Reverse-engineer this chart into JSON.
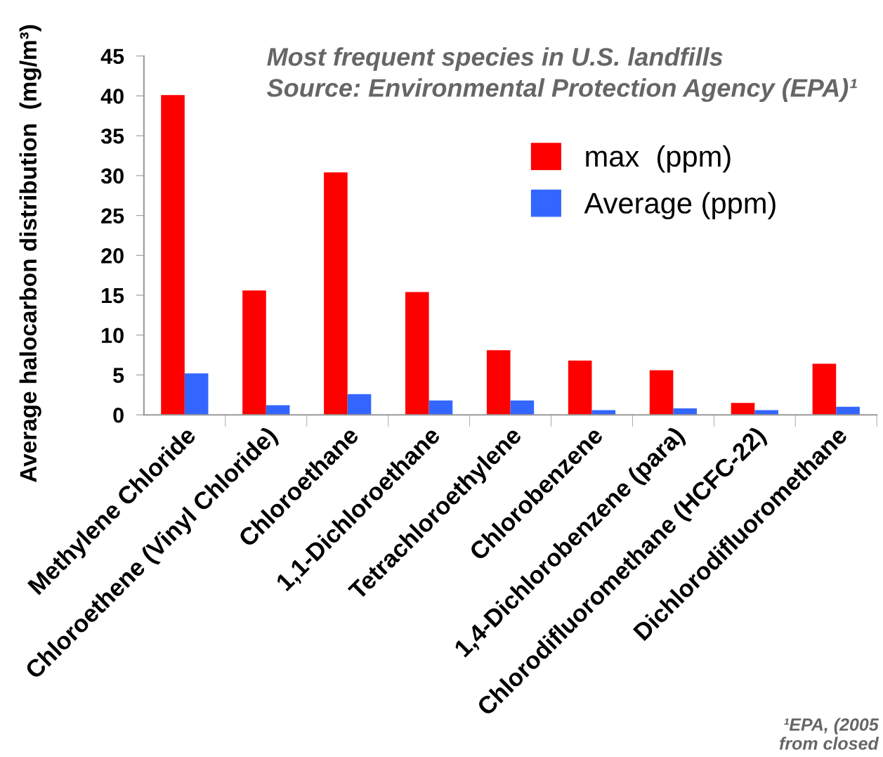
{
  "chart_data": {
    "type": "bar",
    "title": "Most frequent species in U.S. landfills",
    "subtitle": "Source: Environmental Protection Agency (EPA)¹",
    "ylabel": "Average halocarbon distribution  (mg/m³)",
    "categories": [
      "Methylene Chloride",
      "Chloroethene (Vinyl Chloride)",
      "Chloroethane",
      "1,1-Dichloroethane",
      "Tetrachloroethylene",
      "Chlorobenzene",
      "1,4-Dichlorobenzene (para)",
      "Chlorodifluoromethane (HCFC-22)",
      "Dichlorodifluoromethane"
    ],
    "series": [
      {
        "name": "max  (ppm)",
        "color": "#ff0000",
        "values": [
          40.1,
          15.6,
          30.4,
          15.4,
          8.1,
          6.8,
          5.6,
          1.5,
          6.4
        ]
      },
      {
        "name": "Average (ppm)",
        "color": "#3366ff",
        "values": [
          5.2,
          1.2,
          2.6,
          1.8,
          1.8,
          0.6,
          0.8,
          0.6,
          1.0
        ]
      }
    ],
    "ylim": [
      0,
      45
    ],
    "yticks": [
      0,
      5,
      10,
      15,
      20,
      25,
      30,
      35,
      40,
      45
    ],
    "grid": false,
    "legend": "top right",
    "annotations": [
      "¹EPA, (2005\nfrom closed"
    ]
  }
}
